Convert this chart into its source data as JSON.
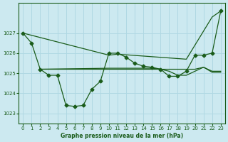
{
  "background_color": "#cce9f0",
  "grid_color": "#b0d8e3",
  "line_color": "#1a5c1a",
  "marker_color": "#1a5c1a",
  "xlabel": "Graphe pression niveau de la mer (hPa)",
  "ylim": [
    1022.5,
    1028.5
  ],
  "yticks": [
    1023,
    1024,
    1025,
    1026,
    1027
  ],
  "xlim": [
    -0.5,
    23.5
  ],
  "xticks": [
    0,
    1,
    2,
    3,
    4,
    5,
    6,
    7,
    8,
    9,
    10,
    11,
    12,
    13,
    14,
    15,
    16,
    17,
    18,
    19,
    20,
    21,
    22,
    23
  ],
  "series_main_x": [
    0,
    1,
    2,
    3,
    4,
    5,
    6,
    7,
    8,
    9,
    10,
    11,
    12,
    13,
    14,
    15,
    16,
    17,
    18,
    19,
    20,
    21,
    22,
    23
  ],
  "series_main_y": [
    1027.0,
    1026.5,
    1025.2,
    1024.9,
    1024.9,
    1023.4,
    1023.35,
    1023.4,
    1024.2,
    1024.6,
    1026.0,
    1026.0,
    1025.8,
    1025.5,
    1025.35,
    1025.3,
    1025.2,
    1024.85,
    1024.85,
    1025.1,
    1025.9,
    1025.9,
    1026.0,
    1028.1
  ],
  "series_diag_x": [
    0,
    10,
    11,
    19,
    22,
    23
  ],
  "series_diag_y": [
    1027.0,
    1025.9,
    1025.95,
    1025.7,
    1027.8,
    1028.1
  ],
  "series_flat1_x": [
    2,
    10,
    11,
    12,
    13,
    14,
    15,
    16,
    17,
    18,
    19,
    20,
    21,
    22,
    23
  ],
  "series_flat1_y": [
    1025.2,
    1025.2,
    1025.2,
    1025.2,
    1025.2,
    1025.2,
    1025.2,
    1025.2,
    1025.2,
    1025.2,
    1025.2,
    1025.2,
    1025.3,
    1025.05,
    1025.05
  ],
  "series_flat2_x": [
    2,
    10,
    11,
    12,
    13,
    14,
    15,
    16,
    17,
    18,
    19,
    20,
    21,
    22,
    23
  ],
  "series_flat2_y": [
    1025.2,
    1025.25,
    1025.25,
    1025.25,
    1025.25,
    1025.25,
    1025.25,
    1025.2,
    1025.1,
    1024.9,
    1024.9,
    1025.1,
    1025.3,
    1025.1,
    1025.1
  ]
}
